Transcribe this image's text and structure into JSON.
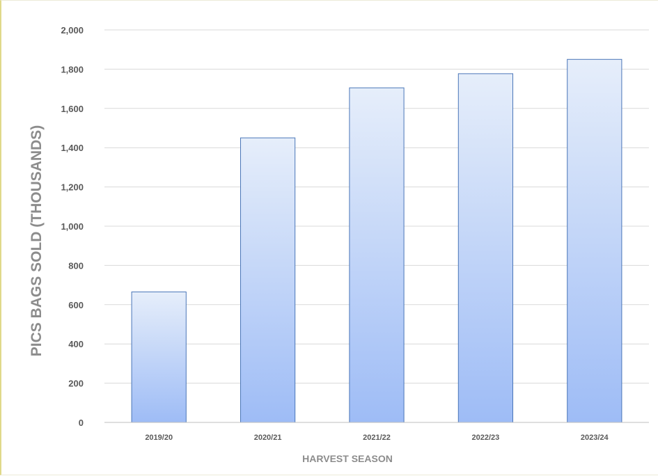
{
  "chart_data": {
    "type": "bar",
    "title": "",
    "xlabel": "HARVEST SEASON",
    "ylabel": "PICS BAGS SOLD (THOUSANDS)",
    "categories": [
      "2019/20",
      "2020/21",
      "2021/22",
      "2022/23",
      "2023/24"
    ],
    "values": [
      665,
      1450,
      1705,
      1777,
      1850
    ],
    "ylim": [
      0,
      2000
    ],
    "yticks": [
      0,
      200,
      400,
      600,
      800,
      1000,
      1200,
      1400,
      1600,
      1800,
      2000
    ],
    "ytick_labels": [
      "0",
      "200",
      "400",
      "600",
      "800",
      "1,000",
      "1,200",
      "1,400",
      "1,600",
      "1,800",
      "2,000"
    ],
    "grid": true,
    "legend": "none",
    "colors": {
      "bar_top": "#e6eefa",
      "bar_bottom": "#9ebcf6",
      "bar_stroke": "#4a76b8",
      "grid": "#d9d9d9",
      "axis": "#bfbfbf"
    }
  }
}
